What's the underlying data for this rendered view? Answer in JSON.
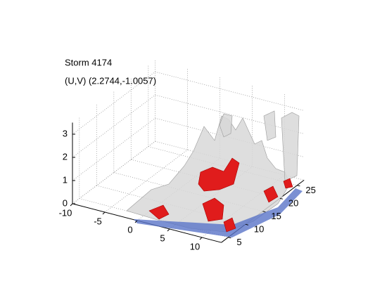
{
  "chart_data": {
    "type": "surface3d",
    "title": "Storm 4174",
    "subtitle": "(U,V) (2.2744,-1.0057)",
    "xlim": [
      -10,
      13
    ],
    "ylim": [
      3,
      27
    ],
    "zlim": [
      0,
      3.5
    ],
    "xticks": [
      -10,
      -5,
      0,
      5,
      10
    ],
    "yticks": [
      5,
      10,
      15,
      20,
      25
    ],
    "zticks": [
      0,
      1,
      2,
      3
    ],
    "grid": true
  }
}
